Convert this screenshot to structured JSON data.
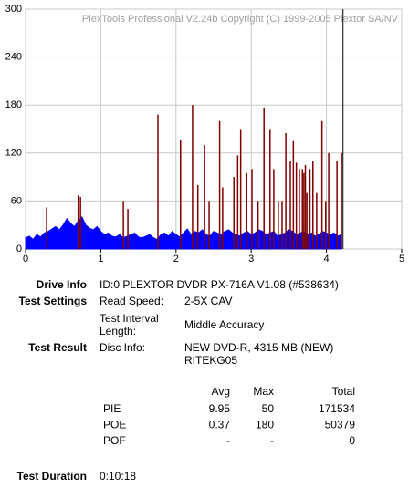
{
  "chart_data": {
    "type": "spike-area",
    "watermark": "PlexTools Professional V2.24b Copyright (C) 1999-2005 Plextor SA/NV",
    "xlim": [
      0,
      5
    ],
    "xticks": [
      0,
      1,
      2,
      3,
      4,
      5
    ],
    "ylim": [
      0,
      300
    ],
    "yticks": [
      0,
      60,
      120,
      180,
      240,
      300
    ],
    "grid": true,
    "marker_x": 4.22,
    "series": [
      {
        "kind": "area",
        "color": "#0000ff",
        "x": [
          0,
          0.05,
          0.1,
          0.15,
          0.2,
          0.25,
          0.3,
          0.35,
          0.4,
          0.45,
          0.5,
          0.55,
          0.6,
          0.65,
          0.7,
          0.75,
          0.8,
          0.85,
          0.9,
          0.95,
          1,
          1.05,
          1.1,
          1.15,
          1.2,
          1.25,
          1.3,
          1.35,
          1.4,
          1.45,
          1.5,
          1.55,
          1.6,
          1.65,
          1.7,
          1.75,
          1.8,
          1.85,
          1.9,
          1.95,
          2,
          2.05,
          2.1,
          2.15,
          2.2,
          2.25,
          2.3,
          2.35,
          2.4,
          2.45,
          2.5,
          2.55,
          2.6,
          2.65,
          2.7,
          2.75,
          2.8,
          2.85,
          2.9,
          2.95,
          3,
          3.05,
          3.1,
          3.15,
          3.2,
          3.25,
          3.3,
          3.35,
          3.4,
          3.45,
          3.5,
          3.55,
          3.6,
          3.65,
          3.7,
          3.75,
          3.8,
          3.85,
          3.9,
          3.95,
          4,
          4.05,
          4.1,
          4.15,
          4.2
        ],
        "values": [
          14,
          16,
          12,
          18,
          15,
          20,
          22,
          25,
          28,
          24,
          30,
          38,
          32,
          28,
          35,
          40,
          30,
          26,
          24,
          28,
          22,
          18,
          20,
          16,
          15,
          18,
          14,
          16,
          18,
          20,
          15,
          14,
          16,
          18,
          14,
          12,
          18,
          20,
          16,
          22,
          18,
          15,
          20,
          25,
          18,
          22,
          20,
          24,
          18,
          16,
          22,
          20,
          18,
          22,
          24,
          20,
          18,
          16,
          20,
          22,
          18,
          20,
          24,
          22,
          18,
          20,
          22,
          16,
          18,
          20,
          24,
          22,
          18,
          20,
          22,
          18,
          20,
          16,
          18,
          22,
          20,
          18,
          20,
          16,
          18
        ]
      },
      {
        "kind": "spikes",
        "color": "#800000",
        "x": [
          0.28,
          0.7,
          0.73,
          1.3,
          1.36,
          1.76,
          2.06,
          2.22,
          2.29,
          2.38,
          2.44,
          2.58,
          2.62,
          2.77,
          2.82,
          2.86,
          2.94,
          3.01,
          3.09,
          3.17,
          3.25,
          3.3,
          3.36,
          3.41,
          3.46,
          3.52,
          3.56,
          3.6,
          3.64,
          3.68,
          3.7,
          3.72,
          3.74,
          3.78,
          3.82,
          3.87,
          3.94,
          3.99,
          4.03,
          4.14,
          4.2
        ],
        "values": [
          52,
          67,
          65,
          60,
          50,
          168,
          137,
          180,
          80,
          130,
          60,
          160,
          77,
          90,
          117,
          150,
          95,
          100,
          60,
          177,
          150,
          100,
          60,
          60,
          145,
          110,
          135,
          108,
          100,
          100,
          95,
          105,
          70,
          100,
          110,
          70,
          160,
          60,
          120,
          110,
          120
        ]
      }
    ]
  },
  "report": {
    "drive_info": {
      "label": "Drive Info",
      "value": "ID:0 PLEXTOR DVDR PX-716A V1.08 (#538634)"
    },
    "test_settings": {
      "label": "Test Settings",
      "rows": [
        {
          "key": "Read Speed:",
          "value": "2-5X CAV"
        },
        {
          "key": [
            "Test Interval",
            "Length:"
          ],
          "value": "Middle Accuracy"
        }
      ]
    },
    "test_result": {
      "label": "Test Result",
      "key": "Disc Info:",
      "value": [
        "NEW DVD-R, 4315 MB (NEW)",
        "RITEKG05"
      ]
    },
    "stats": {
      "headers": [
        "Avg",
        "Max",
        "Total"
      ],
      "rows": [
        [
          "PIE",
          9.95,
          50,
          171534
        ],
        [
          "POE",
          0.37,
          180,
          50379
        ],
        [
          "POF",
          "-",
          "-",
          0
        ]
      ]
    },
    "test_duration": {
      "label": "Test Duration",
      "value": "0:10:18"
    }
  }
}
